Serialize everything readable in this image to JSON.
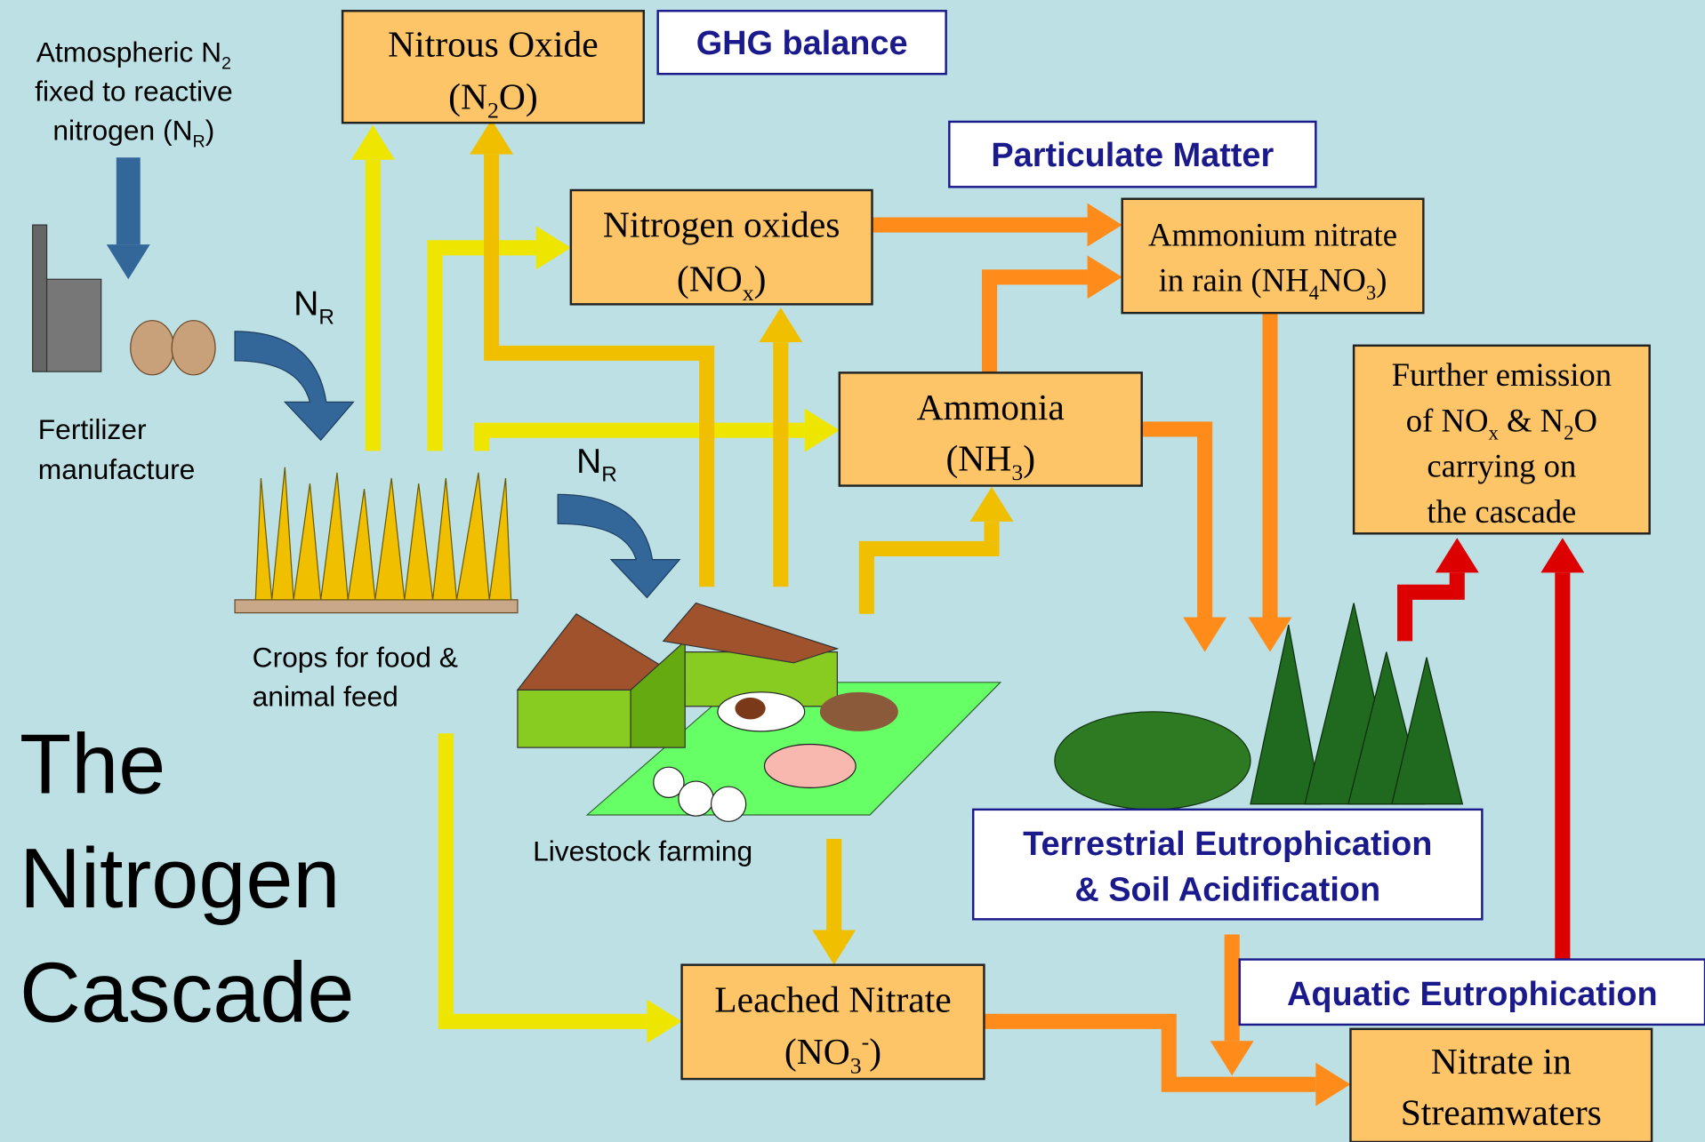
{
  "title": [
    "The",
    "Nitrogen",
    "Cascade"
  ],
  "labels": {
    "atmospheric": [
      [
        "Atmospheric N",
        {
          "sub": "2"
        }
      ],
      [
        "fixed to reactive"
      ],
      [
        "nitrogen (N",
        {
          "sub": "R"
        },
        ")"
      ]
    ],
    "fertilizer": [
      [
        "Fertilizer"
      ],
      [
        "manufacture"
      ]
    ],
    "crops": [
      [
        "Crops for food &"
      ],
      [
        "animal feed"
      ]
    ],
    "livestock": [
      [
        "Livestock farming"
      ]
    ],
    "nr_1": [
      [
        "N",
        {
          "sub": "R"
        }
      ]
    ],
    "nr_2": [
      [
        "N",
        {
          "sub": "R"
        }
      ]
    ]
  },
  "boxes": {
    "nitrous_oxide": [
      [
        "Nitrous Oxide"
      ],
      [
        "(N",
        {
          "sub": "2"
        },
        "O)"
      ]
    ],
    "nitrogen_oxides": [
      [
        "Nitrogen oxides"
      ],
      [
        "(NO",
        {
          "sub": "x"
        },
        ")"
      ]
    ],
    "ammonium_nitrate": [
      [
        "Ammonium nitrate"
      ],
      [
        "in rain (NH",
        {
          "sub": "4"
        },
        "NO",
        {
          "sub": "3"
        },
        ")"
      ]
    ],
    "ammonia": [
      [
        "Ammonia"
      ],
      [
        "(NH",
        {
          "sub": "3"
        },
        ")"
      ]
    ],
    "further_emission": [
      [
        "Further emission"
      ],
      [
        "of NO",
        {
          "sub": "x"
        },
        " & N",
        {
          "sub": "2"
        },
        "O"
      ],
      [
        "carrying on"
      ],
      [
        "the cascade"
      ]
    ],
    "leached_nitrate": [
      [
        "Leached Nitrate"
      ],
      [
        "(NO",
        {
          "sub": "3"
        },
        {
          "sup": "-"
        },
        ")"
      ]
    ],
    "streamwaters": [
      [
        "Nitrate in"
      ],
      [
        "Streamwaters"
      ]
    ]
  },
  "effects": {
    "ghg": [
      [
        "GHG balance"
      ]
    ],
    "particulate": [
      [
        "Particulate Matter"
      ]
    ],
    "terrestrial": [
      [
        "Terrestrial Eutrophication"
      ],
      [
        "& Soil Acidification"
      ]
    ],
    "aquatic": [
      [
        "Aquatic Eutrophication"
      ]
    ]
  }
}
